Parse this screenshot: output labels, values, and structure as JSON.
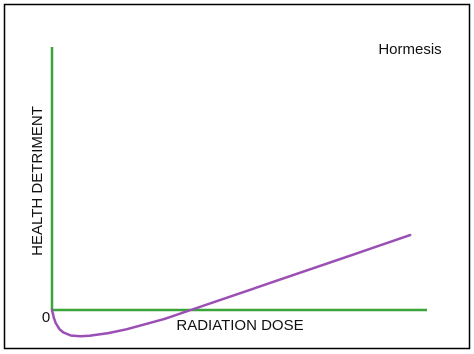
{
  "chart_data": {
    "type": "line",
    "title": "Hormesis",
    "x_label": "RADIATION DOSE",
    "y_label": "HEALTH DETRIMENT",
    "x": [
      0,
      0.5,
      1,
      2,
      3,
      5,
      7.5,
      10,
      15,
      20,
      30,
      37,
      50,
      65,
      80,
      95.5
    ],
    "series": [
      {
        "color": "#9b4fb5",
        "values": [
          0,
          -3,
          -5,
          -7.3,
          -8.5,
          -9.7,
          -10,
          -9.8,
          -8.8,
          -7.3,
          -3.4,
          0,
          6.3,
          13.6,
          20.9,
          28.5
        ]
      }
    ],
    "xlim": [
      0,
      100
    ],
    "ylim": [
      -10,
      100
    ],
    "yticks": [
      0
    ],
    "axis_color": "#3aa53a",
    "grid": false
  }
}
